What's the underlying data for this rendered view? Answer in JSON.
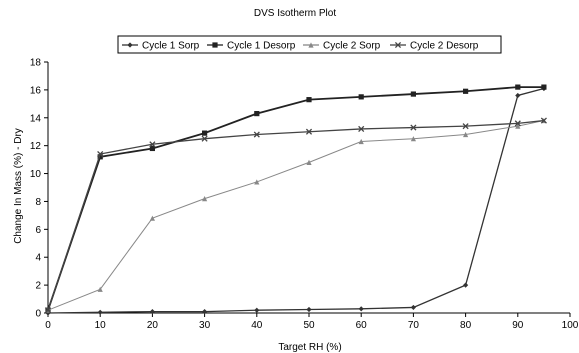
{
  "chart_data": {
    "type": "line",
    "title": "DVS Isotherm Plot",
    "xlabel": "Target RH (%)",
    "ylabel": "Change In Mass (%) - Dry",
    "xlim": [
      0,
      100
    ],
    "ylim": [
      0,
      18
    ],
    "x_ticks": [
      0,
      10,
      20,
      30,
      40,
      50,
      60,
      70,
      80,
      90,
      100
    ],
    "y_ticks": [
      0,
      2,
      4,
      6,
      8,
      10,
      12,
      14,
      16,
      18
    ],
    "grid": false,
    "legend_position": "top",
    "series": [
      {
        "name": "Cycle 1 Sorp",
        "color": "#333333",
        "marker": "diamond",
        "x": [
          0,
          10,
          20,
          30,
          40,
          50,
          60,
          70,
          80,
          90,
          95
        ],
        "values": [
          0.0,
          0.05,
          0.1,
          0.1,
          0.2,
          0.25,
          0.3,
          0.4,
          2.0,
          15.6,
          16.1
        ]
      },
      {
        "name": "Cycle 1 Desorp",
        "color": "#222222",
        "marker": "square",
        "x": [
          95,
          90,
          80,
          70,
          60,
          50,
          40,
          30,
          20,
          10,
          0
        ],
        "values": [
          16.2,
          16.2,
          15.9,
          15.7,
          15.5,
          15.3,
          14.3,
          12.9,
          11.8,
          11.2,
          0.2
        ]
      },
      {
        "name": "Cycle 2 Sorp",
        "color": "#888888",
        "marker": "triangle",
        "x": [
          0,
          10,
          20,
          30,
          40,
          50,
          60,
          70,
          80,
          90,
          95
        ],
        "values": [
          0.2,
          1.7,
          6.8,
          8.2,
          9.4,
          10.8,
          12.3,
          12.5,
          12.8,
          13.4,
          13.8
        ]
      },
      {
        "name": "Cycle 2 Desorp",
        "color": "#444444",
        "marker": "x",
        "x": [
          95,
          90,
          80,
          70,
          60,
          50,
          40,
          30,
          20,
          10,
          0
        ],
        "values": [
          13.8,
          13.6,
          13.4,
          13.3,
          13.2,
          13.0,
          12.8,
          12.5,
          12.1,
          11.4,
          0.2
        ]
      }
    ]
  }
}
